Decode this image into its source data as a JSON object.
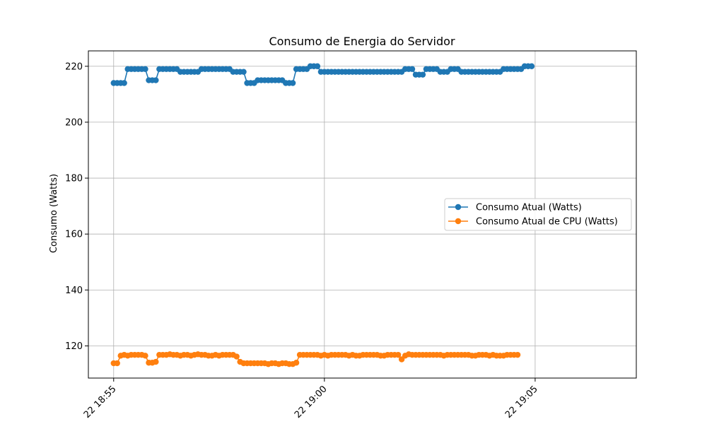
{
  "chart_data": {
    "type": "line",
    "title": "Consumo de Energia do Servidor",
    "xlabel": "",
    "ylabel": "Consumo (Watts)",
    "x_start": "18:55:00",
    "x_step_seconds": 5,
    "x_range": [
      "18:54:24",
      "19:07:24"
    ],
    "ylim": [
      108.5,
      225.5
    ],
    "x_ticks": [
      "22 18:55",
      "22 19:00",
      "22 19:05"
    ],
    "y_ticks": [
      120,
      140,
      160,
      180,
      200,
      220
    ],
    "grid": true,
    "legend_position": "center-right",
    "series": [
      {
        "name": "Consumo Atual (Watts)",
        "color": "#1f77b4",
        "marker": "circle",
        "values": [
          214,
          214,
          214,
          214,
          219,
          219,
          219,
          219,
          219,
          219,
          215,
          215,
          215,
          219,
          219,
          219,
          219,
          219,
          219,
          218,
          218,
          218,
          218,
          218,
          218,
          219,
          219,
          219,
          219,
          219,
          219,
          219,
          219,
          219,
          218,
          218,
          218,
          218,
          214,
          214,
          214,
          215,
          215,
          215,
          215,
          215,
          215,
          215,
          215,
          214,
          214,
          214,
          219,
          219,
          219,
          219,
          220,
          220,
          220,
          218,
          218,
          218,
          218,
          218,
          218,
          218,
          218,
          218,
          218,
          218,
          218,
          218,
          218,
          218,
          218,
          218,
          218,
          218,
          218,
          218,
          218,
          218,
          218,
          219,
          219,
          219,
          217,
          217,
          217,
          219,
          219,
          219,
          219,
          218,
          218,
          218,
          219,
          219,
          219,
          218,
          218,
          218,
          218,
          218,
          218,
          218,
          218,
          218,
          218,
          218,
          218,
          219,
          219,
          219,
          219,
          219,
          219,
          220,
          220,
          220
        ]
      },
      {
        "name": "Consumo Atual de CPU (Watts)",
        "color": "#ff7f0e",
        "marker": "circle",
        "values": [
          113.8,
          113.8,
          116.5,
          116.8,
          116.5,
          116.8,
          116.8,
          116.8,
          116.8,
          116.5,
          114.0,
          114.0,
          114.3,
          116.8,
          116.8,
          116.8,
          117.0,
          116.8,
          116.8,
          116.5,
          116.8,
          116.8,
          116.5,
          116.8,
          117.0,
          116.8,
          116.8,
          116.5,
          116.5,
          116.8,
          116.5,
          116.8,
          116.8,
          116.8,
          116.8,
          116.2,
          114.3,
          113.8,
          113.8,
          113.8,
          113.8,
          113.8,
          113.8,
          113.8,
          113.5,
          113.8,
          113.8,
          113.5,
          113.8,
          113.8,
          113.5,
          113.5,
          114.0,
          116.8,
          116.8,
          116.8,
          116.8,
          116.8,
          116.8,
          116.5,
          116.8,
          116.5,
          116.8,
          116.8,
          116.8,
          116.8,
          116.8,
          116.5,
          116.8,
          116.5,
          116.5,
          116.8,
          116.8,
          116.8,
          116.8,
          116.8,
          116.5,
          116.5,
          116.8,
          116.8,
          116.8,
          116.8,
          115.2,
          116.5,
          117.0,
          116.8,
          116.8,
          116.8,
          116.8,
          116.8,
          116.8,
          116.8,
          116.8,
          116.8,
          116.5,
          116.8,
          116.8,
          116.8,
          116.8,
          116.8,
          116.8,
          116.8,
          116.5,
          116.5,
          116.8,
          116.8,
          116.8,
          116.5,
          116.8,
          116.5,
          116.5,
          116.5,
          116.8,
          116.8,
          116.8,
          116.8
        ]
      }
    ]
  }
}
